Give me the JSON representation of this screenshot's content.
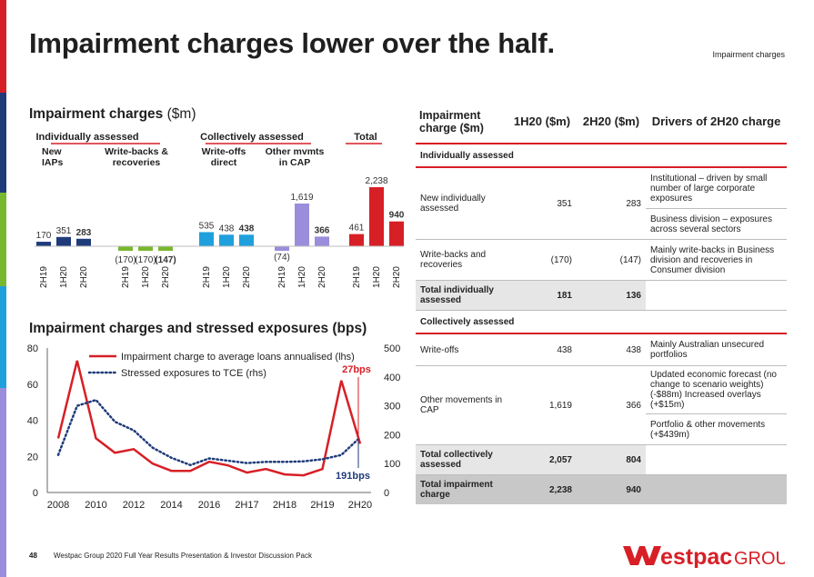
{
  "page": {
    "title": "Impairment charges lower over the half.",
    "tag": "Impairment charges",
    "page_number": "48",
    "footer": "Westpac Group 2020 Full Year Results Presentation & Investor Discussion Pack",
    "logo_text": "estpac",
    "logo_group": "GROUP",
    "edge_colors": [
      "#d71f26",
      "#1f3b7a",
      "#79b72e",
      "#1fa0dc",
      "#9b8ddc"
    ]
  },
  "bar_section": {
    "title": "Impairment charges",
    "title_unit": "($m)"
  },
  "line_section": {
    "title": "Impairment charges and stressed exposures (bps)"
  },
  "chart_data": [
    {
      "type": "bar",
      "title": "Impairment charges ($m)",
      "ylim": [
        -180,
        2300
      ],
      "group_headers": [
        {
          "label": "Individually assessed"
        },
        {
          "label": "Collectively assessed"
        },
        {
          "label": "Total"
        }
      ],
      "groups": [
        {
          "name": "New IAPs",
          "label_lines": [
            "New",
            "IAPs"
          ],
          "color": "#1f3b7a",
          "categories": [
            "2H19",
            "1H20",
            "2H20"
          ],
          "values": [
            170,
            351,
            283
          ],
          "value_labels": [
            "170",
            "351",
            "283"
          ]
        },
        {
          "name": "Write-backs & recoveries",
          "label_lines": [
            "Write-backs &",
            "recoveries"
          ],
          "color": "#79b72e",
          "categories": [
            "2H19",
            "1H20",
            "2H20"
          ],
          "values": [
            -170,
            -170,
            -147
          ],
          "value_labels": [
            "(170)",
            "(170)",
            "(147)"
          ]
        },
        {
          "name": "Write-offs direct",
          "label_lines": [
            "Write-offs",
            "direct"
          ],
          "color": "#1fa0dc",
          "categories": [
            "2H19",
            "1H20",
            "2H20"
          ],
          "values": [
            535,
            438,
            438
          ],
          "value_labels": [
            "535",
            "438",
            "438"
          ]
        },
        {
          "name": "Other mvmts in CAP",
          "label_lines": [
            "Other mvmts",
            "in CAP"
          ],
          "color": "#9b8ddc",
          "categories": [
            "2H19",
            "1H20",
            "2H20"
          ],
          "values": [
            -74,
            1619,
            366
          ],
          "value_labels": [
            "(74)",
            "1,619",
            "366"
          ]
        },
        {
          "name": "Total",
          "label_lines": [],
          "color": "#d71f26",
          "categories": [
            "2H19",
            "1H20",
            "2H20"
          ],
          "values": [
            461,
            2238,
            940
          ],
          "value_labels": [
            "461",
            "2,238",
            "940"
          ]
        }
      ]
    },
    {
      "type": "line",
      "title": "Impairment charges and stressed exposures (bps)",
      "x_ticks": [
        "2008",
        "2010",
        "2012",
        "2014",
        "2016",
        "2H17",
        "2H18",
        "2H19",
        "2H20"
      ],
      "ylim_left": [
        0,
        80
      ],
      "yticks_left": [
        0,
        20,
        40,
        60,
        80
      ],
      "ylim_right": [
        0,
        500
      ],
      "yticks_right": [
        0,
        100,
        200,
        300,
        400,
        500
      ],
      "series": [
        {
          "name": "Impairment charge to average loans annualised (lhs)",
          "axis": "left",
          "color": "#d71f26",
          "style": "solid",
          "values": [
            30,
            73,
            30,
            22,
            24,
            16,
            12,
            12,
            17,
            15,
            11,
            13,
            10,
            9.5,
            13,
            62,
            27
          ]
        },
        {
          "name": "Stressed exposures to TCE (rhs)",
          "axis": "right",
          "color": "#1f3b7a",
          "style": "dotted",
          "values": [
            130,
            300,
            320,
            245,
            215,
            155,
            120,
            95,
            118,
            110,
            102,
            106,
            106,
            108,
            115,
            130,
            191
          ]
        }
      ],
      "annotations": [
        {
          "label": "27bps",
          "color": "#d71f26"
        },
        {
          "label": "191bps",
          "color": "#1f3b7a"
        }
      ]
    }
  ],
  "table": {
    "headers": [
      "Impairment charge ($m)",
      "1H20 ($m)",
      "2H20 ($m)",
      "Drivers of 2H20 charge"
    ],
    "section_individual": "Individually assessed",
    "section_collective": "Collectively assessed",
    "rows": {
      "new_ind": {
        "label": "New individually assessed",
        "h1": "351",
        "h2": "283",
        "driver1": "Institutional – driven by small number of large corporate exposures",
        "driver2": "Business division – exposures across several sectors"
      },
      "writebacks": {
        "label": "Write-backs and recoveries",
        "h1": "(170)",
        "h2": "(147)",
        "driver1": "Mainly write-backs in Business division and recoveries in Consumer division"
      },
      "total_ind": {
        "label": "Total individually assessed",
        "h1": "181",
        "h2": "136"
      },
      "writeoffs": {
        "label": "Write-offs",
        "h1": "438",
        "h2": "438",
        "driver1": "Mainly Australian unsecured portfolios"
      },
      "other_cap": {
        "label": "Other movements in CAP",
        "h1": "1,619",
        "h2": "366",
        "driver1": "Updated economic forecast (no change to scenario weights) (-$88m) Increased overlays (+$15m)",
        "driver2": "Portfolio & other movements (+$439m)"
      },
      "total_col": {
        "label": "Total collectively assessed",
        "h1": "2,057",
        "h2": "804"
      },
      "total": {
        "label": "Total impairment charge",
        "h1": "2,238",
        "h2": "940"
      }
    }
  }
}
